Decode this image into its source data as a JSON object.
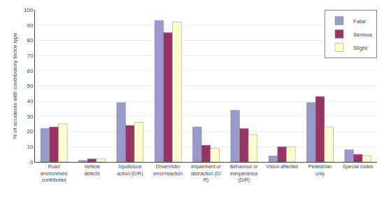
{
  "chart_data": {
    "type": "bar",
    "categories": [
      "Road\nenvironment\ncontributed",
      "Vehicle\ndefects",
      "Injudicious\naction (D/R)",
      "Driver/rider\nerror/reaction",
      "Impairment or\ndistraction (D/\nR)",
      "Behaviour or\ninexperience\n(D/R)",
      "Vision affected",
      "Pedestrian\nonly",
      "Special codes"
    ],
    "series": [
      {
        "name": "Fatal",
        "color": "#9999CC",
        "values": [
          22,
          1,
          39,
          93,
          23,
          34,
          4,
          39,
          8
        ]
      },
      {
        "name": "Serious",
        "color": "#993366",
        "values": [
          23,
          2,
          24,
          85,
          11,
          22,
          10,
          43,
          5
        ]
      },
      {
        "name": "Slight",
        "color": "#FFFFCC",
        "values": [
          25,
          2,
          26,
          92,
          9,
          18,
          10,
          23,
          4
        ]
      }
    ],
    "ylabel": "% of accidents with contributory factor type",
    "ylim": [
      0,
      100
    ],
    "yticks": [
      0,
      10,
      20,
      30,
      40,
      50,
      60,
      70,
      80,
      90,
      100
    ],
    "grid": true,
    "legend": "upper right"
  }
}
